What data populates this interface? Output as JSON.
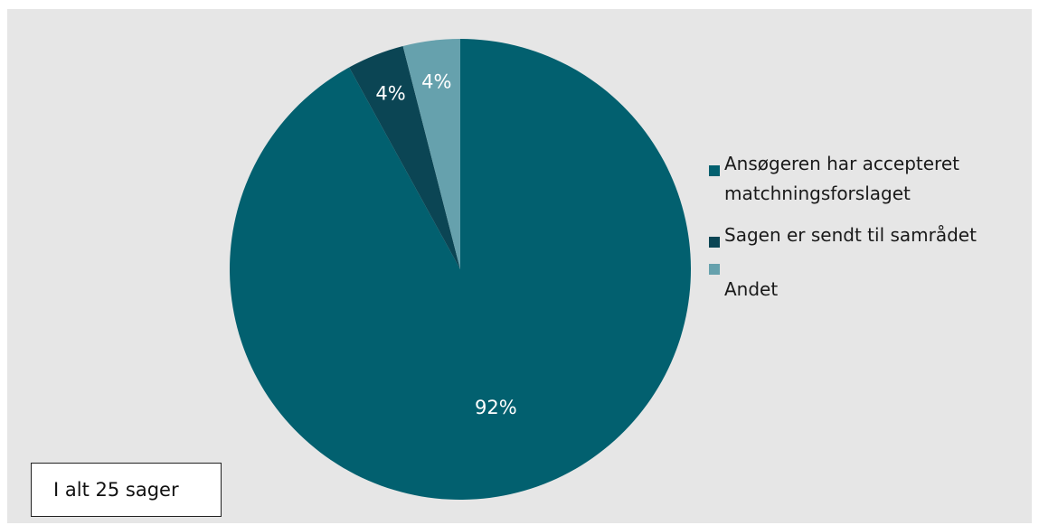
{
  "chart_data": {
    "type": "pie",
    "title": "",
    "slices": [
      {
        "label": "Ansøgeren har accepteret matchningsforslaget",
        "value": 92,
        "display": "92%",
        "color": "#02606f"
      },
      {
        "label": "Sagen er sendt til samrådet",
        "value": 4,
        "display": "4%",
        "color": "#0b4554"
      },
      {
        "label": "Andet",
        "value": 4,
        "display": "4%",
        "color": "#66a1ad"
      }
    ],
    "legend_position": "right"
  },
  "annotation": {
    "total_text": "I alt 25 sager"
  }
}
